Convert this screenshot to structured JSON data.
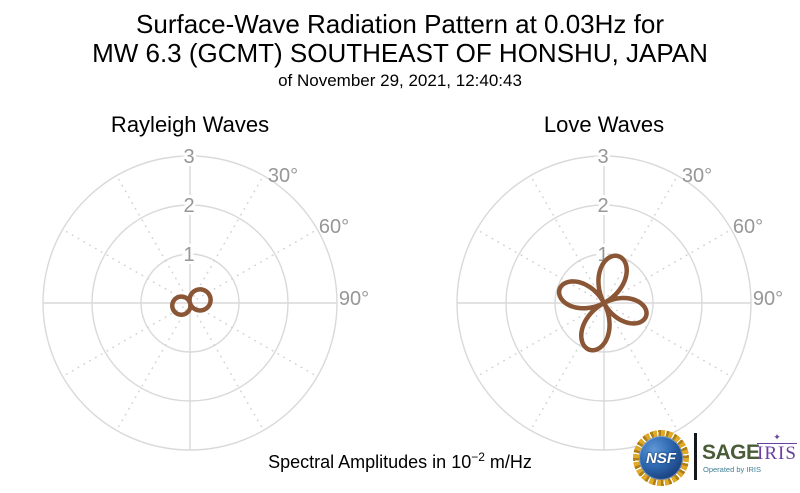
{
  "title": {
    "line1": "Surface-Wave Radiation Pattern at 0.03Hz for",
    "line2": "MW 6.3 (GCMT) SOUTHEAST OF HONSHU, JAPAN",
    "line3": "of November 29, 2021, 12:40:43"
  },
  "caption": {
    "prefix": "Spectral Amplitudes in 10",
    "exponent": "−2",
    "suffix": " m/Hz"
  },
  "logos": {
    "nsf_label": "NSF",
    "sage_label": "SAGE",
    "sage_subtext": "Operated by IRIS",
    "iris_label": "IRIS",
    "iris_star_glyph": "✦"
  },
  "colors": {
    "pattern_stroke": "#8a5635",
    "grid_line": "#d9d9d9",
    "grid_dots": "#d2d2d2",
    "tick_label": "#979797",
    "title_text": "#000000",
    "nsf_blue": "#1c4584",
    "nsf_gold": "#e0a927",
    "nsf_gold_dark": "#b07f14",
    "sage_green": "#4a5c38",
    "iris_teal": "#3f7f93",
    "iris_purple": "#6a3fa0"
  },
  "chart_data": [
    {
      "type": "polar-rose",
      "title": "Rayleigh Waves",
      "units": "10^-2 m/Hz",
      "frequency_hz": 0.03,
      "radial_ticks": [
        1,
        2,
        3
      ],
      "radial_range": [
        0,
        3
      ],
      "angle_ticks": [
        {
          "deg": 30,
          "label": "30°"
        },
        {
          "deg": 60,
          "label": "60°"
        },
        {
          "deg": 90,
          "label": "90°"
        }
      ],
      "grid_spokes_deg": [
        30,
        60,
        120,
        150,
        210,
        240,
        300,
        330
      ],
      "lobes": [
        {
          "azimuth_deg": 73,
          "amplitude": 0.43
        },
        {
          "azimuth_deg": 253,
          "amplitude": 0.37
        }
      ]
    },
    {
      "type": "polar-rose",
      "title": "Love Waves",
      "units": "10^-2 m/Hz",
      "frequency_hz": 0.03,
      "radial_ticks": [
        1,
        2,
        3
      ],
      "radial_range": [
        0,
        3
      ],
      "angle_ticks": [
        {
          "deg": 30,
          "label": "30°"
        },
        {
          "deg": 60,
          "label": "60°"
        },
        {
          "deg": 90,
          "label": "90°"
        }
      ],
      "grid_spokes_deg": [
        30,
        60,
        120,
        150,
        210,
        240,
        300,
        330
      ],
      "lobes": [
        {
          "azimuth_deg": 17,
          "amplitude": 1.0
        },
        {
          "azimuth_deg": 107,
          "amplitude": 0.9
        },
        {
          "azimuth_deg": 197,
          "amplitude": 1.0
        },
        {
          "azimuth_deg": 287,
          "amplitude": 0.95
        }
      ]
    }
  ]
}
